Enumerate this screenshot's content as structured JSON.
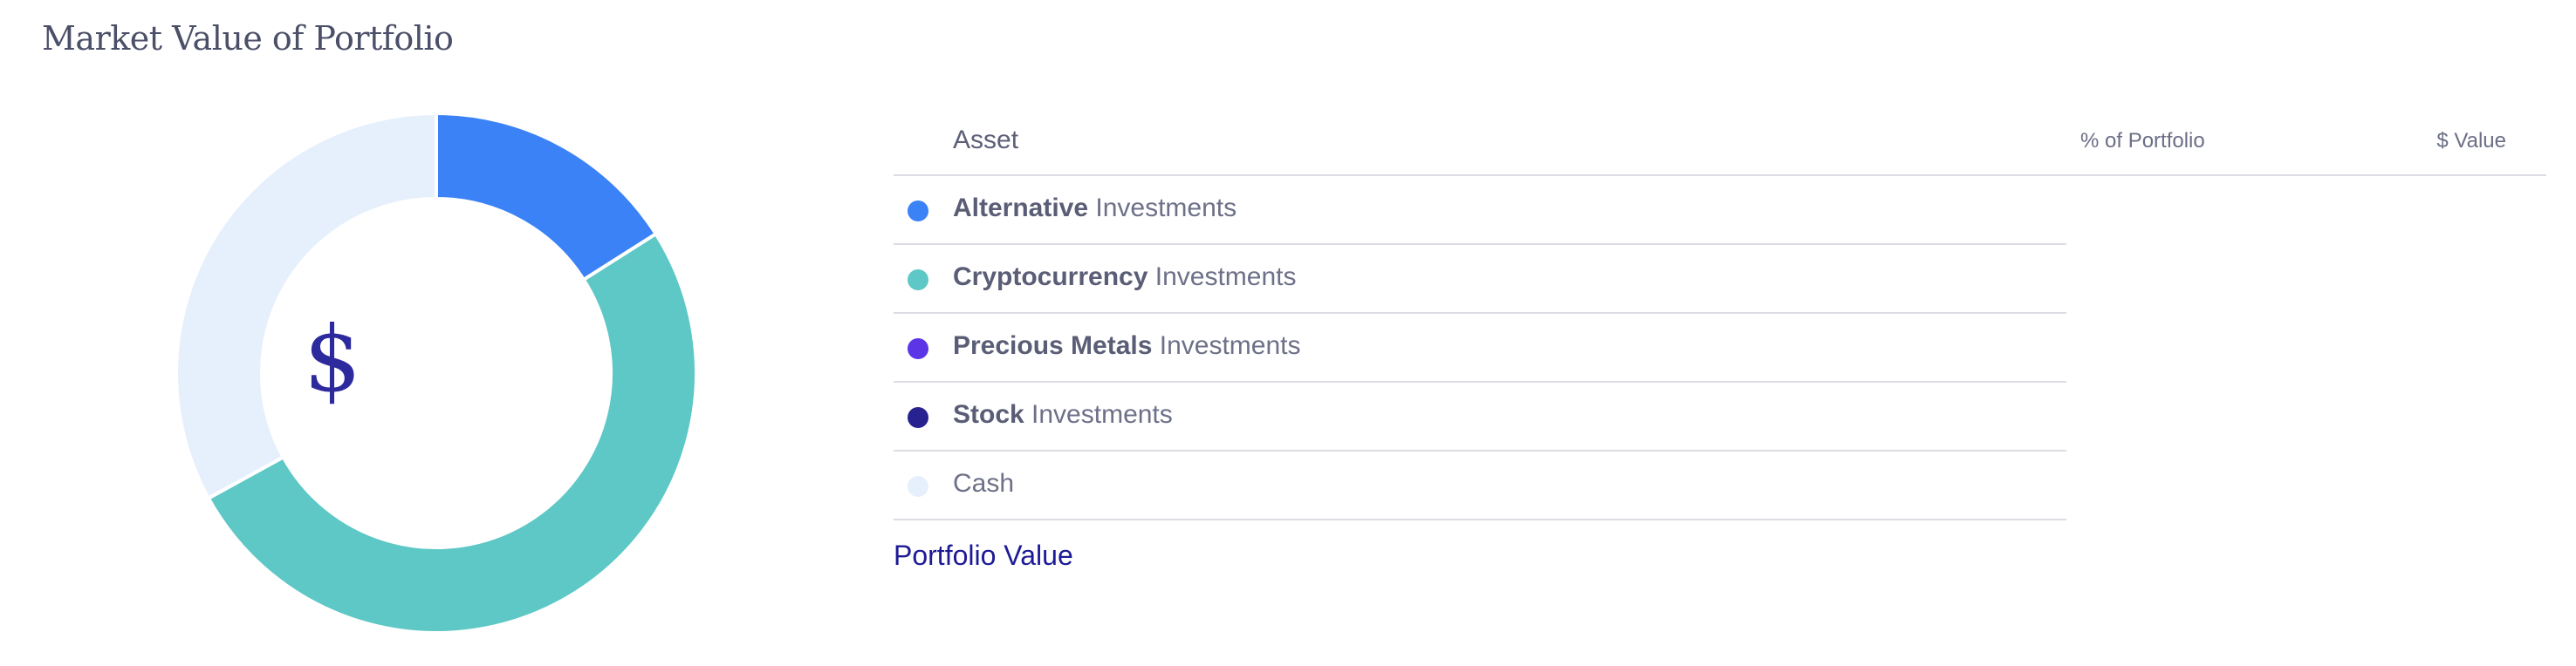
{
  "header": {
    "title": "Market Value of Portfolio"
  },
  "center_symbol": "$",
  "table": {
    "headers": {
      "asset": "Asset",
      "pct": "% of Portfolio",
      "value": "$ Value"
    },
    "rows": [
      {
        "bold": "Alternative",
        "rest": " Investments",
        "color": "#3b82f6",
        "icon": "dot-icon"
      },
      {
        "bold": "Cryptocurrency",
        "rest": " Investments",
        "color": "#5ec8c6",
        "icon": "dot-icon"
      },
      {
        "bold": "Precious Metals",
        "rest": " Investments",
        "color": "#5b35e6",
        "icon": "dot-icon"
      },
      {
        "bold": "Stock",
        "rest": " Investments",
        "color": "#27228f",
        "icon": "dot-icon"
      },
      {
        "bold": "",
        "rest": "Cash",
        "color": "#e6f0fc",
        "icon": "dot-icon"
      }
    ],
    "footer": {
      "label": "Portfolio Value"
    }
  },
  "chart_data": {
    "type": "pie",
    "categories": [
      "Alternative Investments",
      "Cryptocurrency Investments",
      "Cash"
    ],
    "values": [
      16,
      51,
      33
    ],
    "colors": [
      "#3b82f6",
      "#5ec8c6",
      "#e6f0fc"
    ],
    "title": "Market Value of Portfolio"
  }
}
